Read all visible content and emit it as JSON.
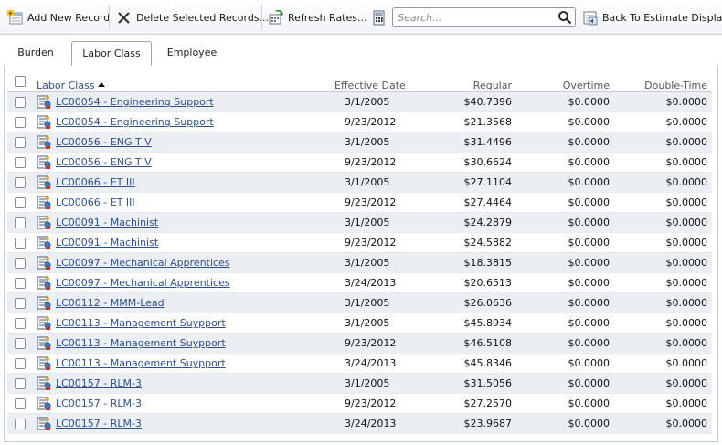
{
  "toolbar": {
    "add_label": "Add New Record",
    "delete_label": "Delete Selected Records...",
    "refresh_label": "Refresh Rates...",
    "search_placeholder": "Search...",
    "back_label": "Back To Estimate Display"
  },
  "tabs": [
    {
      "label": "Burden",
      "active": false
    },
    {
      "label": "Labor Class",
      "active": true
    },
    {
      "label": "Employee",
      "active": false
    }
  ],
  "grid": {
    "columns": {
      "labor_class": "Labor Class",
      "effective_date": "Effective Date",
      "regular": "Regular",
      "overtime": "Overtime",
      "double_time": "Double-Time"
    },
    "sorted_by": "Labor Class",
    "sort_direction": "ascending",
    "rows": [
      {
        "labor_class": "LC00054 - Engineering Support",
        "effective_date": "3/1/2005",
        "regular": "$40.7396",
        "overtime": "$0.0000",
        "double_time": "$0.0000"
      },
      {
        "labor_class": "LC00054 - Engineering Support",
        "effective_date": "9/23/2012",
        "regular": "$21.3568",
        "overtime": "$0.0000",
        "double_time": "$0.0000"
      },
      {
        "labor_class": "LC00056 - ENG T V",
        "effective_date": "3/1/2005",
        "regular": "$31.4496",
        "overtime": "$0.0000",
        "double_time": "$0.0000"
      },
      {
        "labor_class": "LC00056 - ENG T V",
        "effective_date": "9/23/2012",
        "regular": "$30.6624",
        "overtime": "$0.0000",
        "double_time": "$0.0000"
      },
      {
        "labor_class": "LC00066 - ET III",
        "effective_date": "3/1/2005",
        "regular": "$27.1104",
        "overtime": "$0.0000",
        "double_time": "$0.0000"
      },
      {
        "labor_class": "LC00066 - ET III",
        "effective_date": "9/23/2012",
        "regular": "$27.4464",
        "overtime": "$0.0000",
        "double_time": "$0.0000"
      },
      {
        "labor_class": "LC00091 - Machinist",
        "effective_date": "3/1/2005",
        "regular": "$24.2879",
        "overtime": "$0.0000",
        "double_time": "$0.0000"
      },
      {
        "labor_class": "LC00091 - Machinist",
        "effective_date": "9/23/2012",
        "regular": "$24.5882",
        "overtime": "$0.0000",
        "double_time": "$0.0000"
      },
      {
        "labor_class": "LC00097 - Mechanical Apprentices",
        "effective_date": "3/1/2005",
        "regular": "$18.3815",
        "overtime": "$0.0000",
        "double_time": "$0.0000"
      },
      {
        "labor_class": "LC00097 - Mechanical Apprentices",
        "effective_date": "3/24/2013",
        "regular": "$20.6513",
        "overtime": "$0.0000",
        "double_time": "$0.0000"
      },
      {
        "labor_class": "LC00112 - MMM-Lead",
        "effective_date": "3/1/2005",
        "regular": "$26.0636",
        "overtime": "$0.0000",
        "double_time": "$0.0000"
      },
      {
        "labor_class": "LC00113 - Management Suypport",
        "effective_date": "3/1/2005",
        "regular": "$45.8934",
        "overtime": "$0.0000",
        "double_time": "$0.0000"
      },
      {
        "labor_class": "LC00113 - Management Suypport",
        "effective_date": "9/23/2012",
        "regular": "$46.5108",
        "overtime": "$0.0000",
        "double_time": "$0.0000"
      },
      {
        "labor_class": "LC00113 - Management Suypport",
        "effective_date": "3/24/2013",
        "regular": "$45.8346",
        "overtime": "$0.0000",
        "double_time": "$0.0000"
      },
      {
        "labor_class": "LC00157 - RLM-3",
        "effective_date": "3/1/2005",
        "regular": "$31.5056",
        "overtime": "$0.0000",
        "double_time": "$0.0000"
      },
      {
        "labor_class": "LC00157 - RLM-3",
        "effective_date": "9/23/2012",
        "regular": "$27.2570",
        "overtime": "$0.0000",
        "double_time": "$0.0000"
      },
      {
        "labor_class": "LC00157 - RLM-3",
        "effective_date": "3/24/2013",
        "regular": "$23.9687",
        "overtime": "$0.0000",
        "double_time": "$0.0000"
      }
    ]
  },
  "colors": {
    "link": "#2e4f8f",
    "alt_row": "#ebeef2",
    "tab_border": "#9aa6b4"
  },
  "icons": {
    "add": "add-record-icon",
    "delete": "delete-x-icon",
    "refresh": "refresh-rates-icon",
    "calculator": "calculator-icon",
    "search": "magnifier-icon",
    "back": "back-to-estimate-icon",
    "row": "labor-class-record-icon"
  }
}
